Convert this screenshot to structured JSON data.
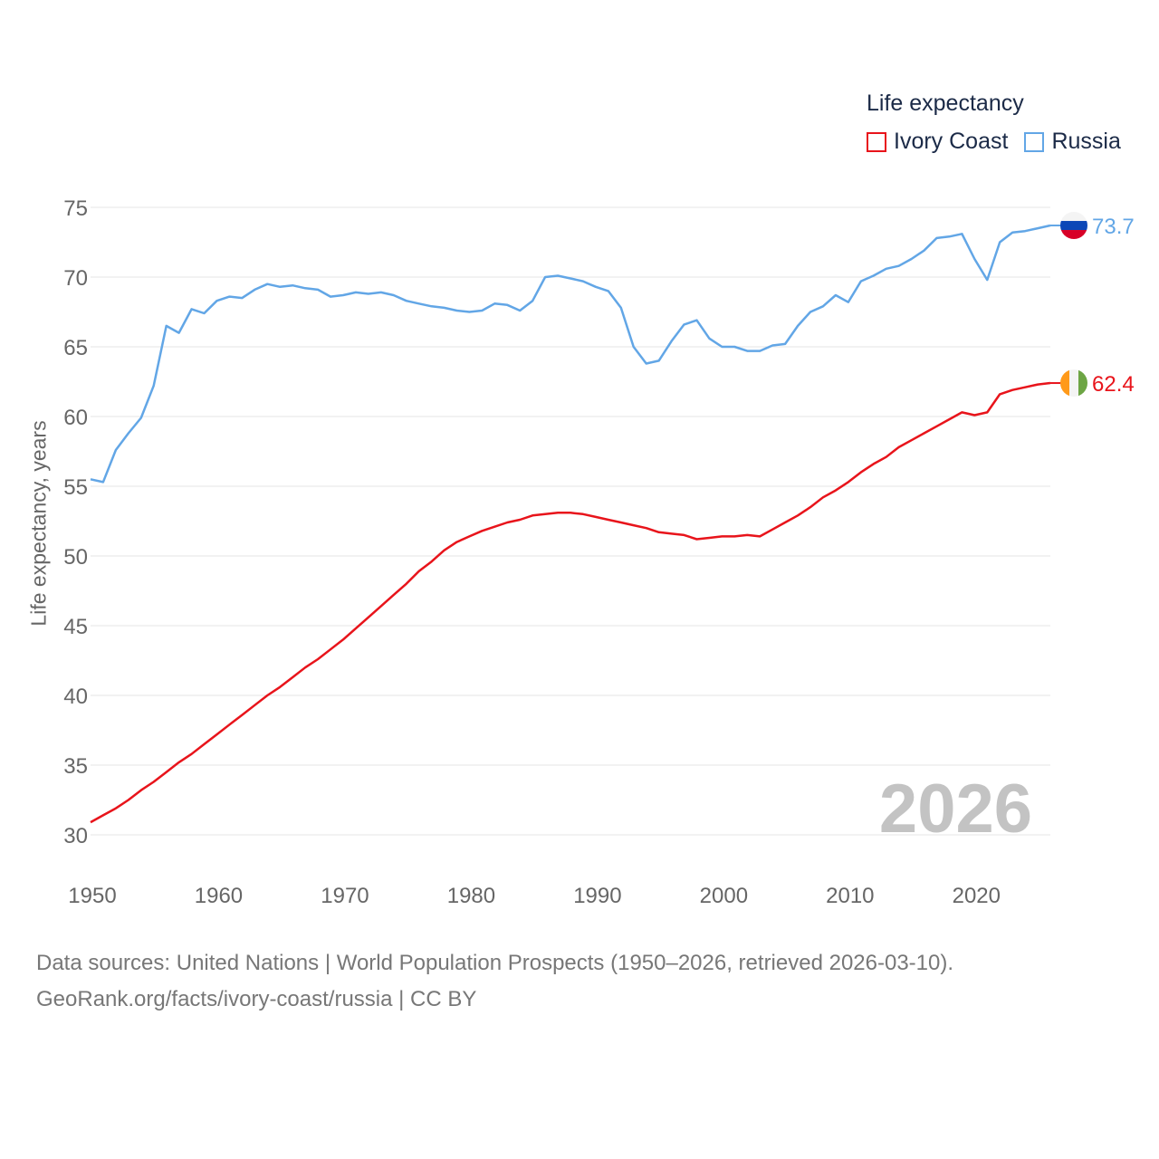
{
  "legend": {
    "title": "Life expectancy",
    "items": [
      {
        "label": "Ivory Coast",
        "color": "#e8141b"
      },
      {
        "label": "Russia",
        "color": "#62a6e6"
      }
    ]
  },
  "year_overlay": "2026",
  "source": {
    "line1": "Data sources: United Nations | World Population Prospects (1950–2026, retrieved 2026-03-10).",
    "line2": "GeoRank.org/facts/ivory-coast/russia | CC BY"
  },
  "chart_data": {
    "type": "line",
    "title": "Life expectancy",
    "xlabel": "",
    "ylabel": "Life expectancy, years",
    "xlim": [
      1950,
      2026
    ],
    "ylim": [
      30,
      75
    ],
    "yticks": [
      30,
      35,
      40,
      45,
      50,
      55,
      60,
      65,
      70,
      75
    ],
    "xticks": [
      1950,
      1960,
      1970,
      1980,
      1990,
      2000,
      2010,
      2020
    ],
    "grid": true,
    "legend_position": "top-right",
    "x": [
      1950,
      1951,
      1952,
      1953,
      1954,
      1955,
      1956,
      1957,
      1958,
      1959,
      1960,
      1961,
      1962,
      1963,
      1964,
      1965,
      1966,
      1967,
      1968,
      1969,
      1970,
      1971,
      1972,
      1973,
      1974,
      1975,
      1976,
      1977,
      1978,
      1979,
      1980,
      1981,
      1982,
      1983,
      1984,
      1985,
      1986,
      1987,
      1988,
      1989,
      1990,
      1991,
      1992,
      1993,
      1994,
      1995,
      1996,
      1997,
      1998,
      1999,
      2000,
      2001,
      2002,
      2003,
      2004,
      2005,
      2006,
      2007,
      2008,
      2009,
      2010,
      2011,
      2012,
      2013,
      2014,
      2015,
      2016,
      2017,
      2018,
      2019,
      2020,
      2021,
      2022,
      2023,
      2024,
      2025,
      2026
    ],
    "series": [
      {
        "name": "Ivory Coast",
        "color": "#e8141b",
        "end_label": "62.4",
        "values": [
          30.9,
          31.4,
          31.9,
          32.5,
          33.2,
          33.8,
          34.5,
          35.2,
          35.8,
          36.5,
          37.2,
          37.9,
          38.6,
          39.3,
          40.0,
          40.6,
          41.3,
          42.0,
          42.6,
          43.3,
          44.0,
          44.8,
          45.6,
          46.4,
          47.2,
          48.0,
          48.9,
          49.6,
          50.4,
          51.0,
          51.4,
          51.8,
          52.1,
          52.4,
          52.6,
          52.9,
          53.0,
          53.1,
          53.1,
          53.0,
          52.8,
          52.6,
          52.4,
          52.2,
          52.0,
          51.7,
          51.6,
          51.5,
          51.2,
          51.3,
          51.4,
          51.4,
          51.5,
          51.4,
          51.9,
          52.4,
          52.9,
          53.5,
          54.2,
          54.7,
          55.3,
          56.0,
          56.6,
          57.1,
          57.8,
          58.3,
          58.8,
          59.3,
          59.8,
          60.3,
          60.1,
          60.3,
          61.6,
          61.9,
          62.1,
          62.3,
          62.4
        ]
      },
      {
        "name": "Russia",
        "color": "#62a6e6",
        "end_label": "73.7",
        "values": [
          55.5,
          55.3,
          57.6,
          58.8,
          59.9,
          62.2,
          66.5,
          66.0,
          67.7,
          67.4,
          68.3,
          68.6,
          68.5,
          69.1,
          69.5,
          69.3,
          69.4,
          69.2,
          69.1,
          68.6,
          68.7,
          68.9,
          68.8,
          68.9,
          68.7,
          68.3,
          68.1,
          67.9,
          67.8,
          67.6,
          67.5,
          67.6,
          68.1,
          68.0,
          67.6,
          68.3,
          70.0,
          70.1,
          69.9,
          69.7,
          69.3,
          69.0,
          67.8,
          65.0,
          63.8,
          64.0,
          65.4,
          66.6,
          66.9,
          65.6,
          65.0,
          65.0,
          64.7,
          64.7,
          65.1,
          65.2,
          66.5,
          67.5,
          67.9,
          68.7,
          68.2,
          69.7,
          70.1,
          70.6,
          70.8,
          71.3,
          71.9,
          72.8,
          72.9,
          73.1,
          71.3,
          69.8,
          72.5,
          73.2,
          73.3,
          73.5,
          73.7
        ]
      }
    ]
  }
}
